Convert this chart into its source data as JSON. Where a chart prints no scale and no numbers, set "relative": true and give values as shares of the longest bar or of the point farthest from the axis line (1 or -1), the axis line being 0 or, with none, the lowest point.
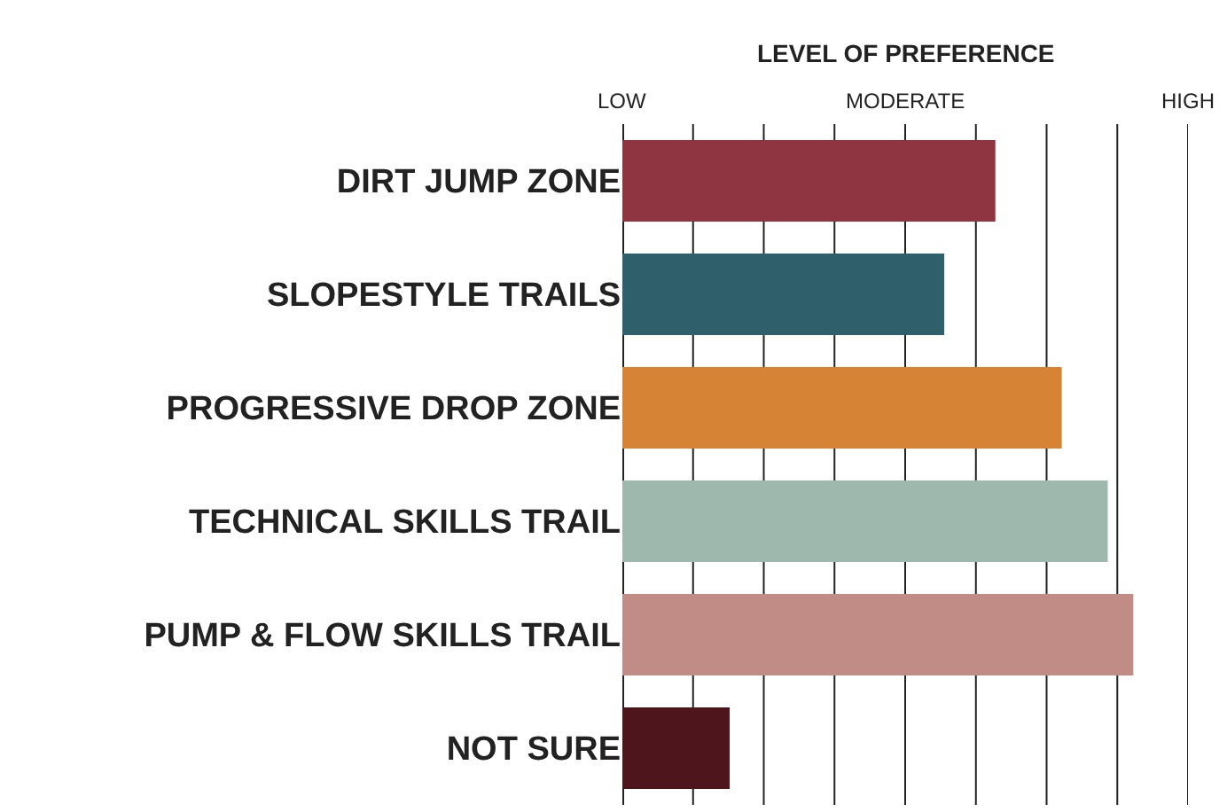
{
  "chart_data": {
    "type": "bar",
    "orientation": "horizontal",
    "relative": true,
    "xlabel": "LEVEL OF PREFERENCE",
    "categories": [
      "DIRT JUMP ZONE",
      "SLOPESTYLE TRAILS",
      "PROGRESSIVE DROP ZONE",
      "TECHNICAL SKILLS TRAIL",
      "PUMP & FLOW SKILLS TRAIL",
      "NOT SURE"
    ],
    "values": [
      0.73,
      0.63,
      0.86,
      0.95,
      1,
      0.21
    ],
    "colors": [
      "#8f3441",
      "#2f5f6b",
      "#d68335",
      "#9fb8ae",
      "#c08c85",
      "#4f151c"
    ],
    "annotations": [
      "LOW",
      "MODERATE",
      "HIGH"
    ],
    "grid": "x"
  }
}
